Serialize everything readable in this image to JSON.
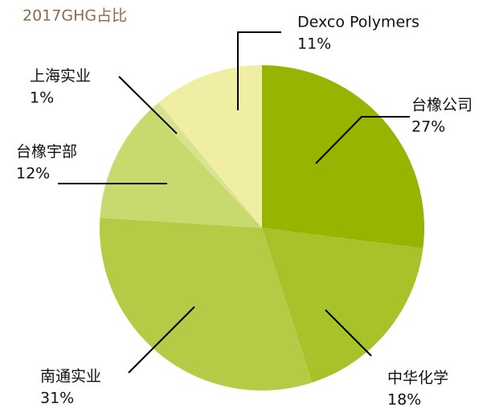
{
  "chart_data": {
    "type": "pie",
    "title": "2017GHG占比",
    "categories": [
      "台橡公司",
      "中华化学",
      "南通实业",
      "台橡宇部",
      "上海实业",
      "Dexco Polymers"
    ],
    "values": [
      27,
      18,
      31,
      12,
      1,
      11
    ],
    "value_labels": [
      "27%",
      "18%",
      "31%",
      "12%",
      "1%",
      "11%"
    ],
    "colors": [
      "#97b500",
      "#a8c22a",
      "#b5cb45",
      "#c8d96e",
      "#d8e38f",
      "#efeea2"
    ]
  }
}
